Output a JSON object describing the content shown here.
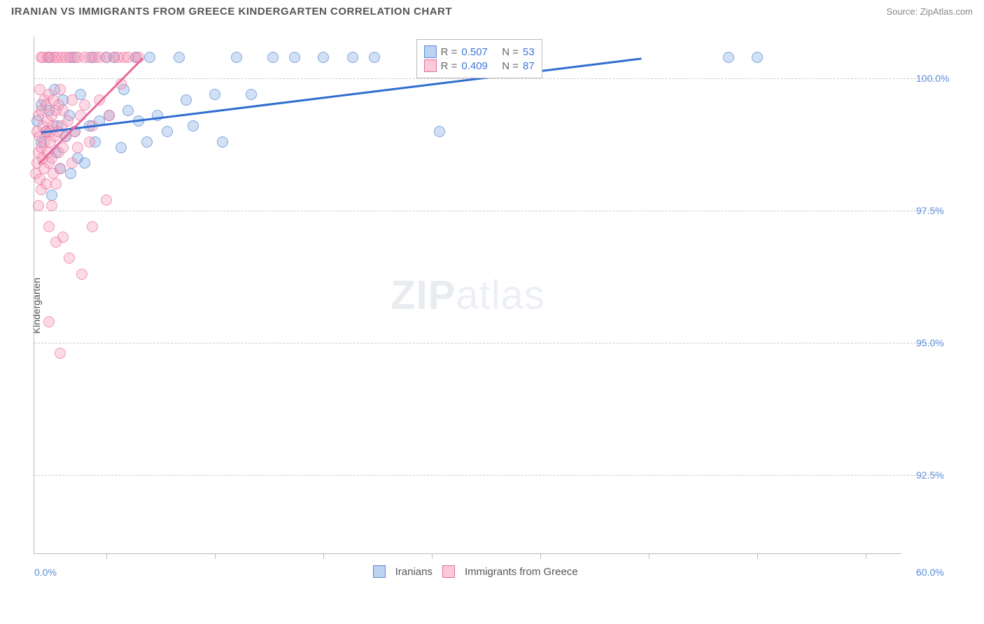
{
  "header": {
    "title": "IRANIAN VS IMMIGRANTS FROM GREECE KINDERGARTEN CORRELATION CHART",
    "source": "Source: ZipAtlas.com"
  },
  "chart": {
    "type": "scatter",
    "watermark": "ZIPatlas",
    "ylabel": "Kindergarten",
    "background_color": "#ffffff",
    "grid_color": "#cccccc",
    "axis_color": "#bbbbbb",
    "tick_color": "#5b8dd6",
    "ylabel_color": "#555555",
    "xlim": [
      0,
      60
    ],
    "ylim": [
      91.0,
      100.8
    ],
    "ytick_labels": [
      "92.5%",
      "95.0%",
      "97.5%",
      "100.0%"
    ],
    "ytick_values": [
      92.5,
      95.0,
      97.5,
      100.0
    ],
    "xtick_values": [
      5,
      12.5,
      20,
      27.5,
      35,
      42.5,
      50,
      57.5
    ],
    "xlim_labels": [
      "0.0%",
      "60.0%"
    ],
    "legend_box": {
      "rows": [
        {
          "swatch": "blue",
          "r_label": "R =",
          "r_value": "0.507",
          "n_label": "N =",
          "n_value": "53"
        },
        {
          "swatch": "pink",
          "r_label": "R =",
          "r_value": "0.409",
          "n_label": "N =",
          "n_value": "87"
        }
      ]
    },
    "series": [
      {
        "name": "Iranians",
        "color_fill": "rgba(120,165,225,0.35)",
        "color_stroke": "rgba(70,120,200,0.55)",
        "marker_radius": 8,
        "regression": {
          "x1": 0.5,
          "y1": 99.0,
          "x2": 42,
          "y2": 100.4,
          "color": "#2f6dd0",
          "width": 2.5
        },
        "points": [
          [
            0.2,
            99.2
          ],
          [
            0.5,
            98.8
          ],
          [
            0.5,
            99.5
          ],
          [
            0.8,
            99.0
          ],
          [
            1.0,
            99.4
          ],
          [
            1.0,
            100.4
          ],
          [
            1.2,
            97.8
          ],
          [
            1.4,
            99.8
          ],
          [
            1.5,
            98.6
          ],
          [
            1.6,
            99.1
          ],
          [
            1.8,
            98.3
          ],
          [
            2.0,
            99.6
          ],
          [
            2.2,
            98.9
          ],
          [
            2.4,
            99.3
          ],
          [
            2.5,
            98.2
          ],
          [
            2.6,
            100.4
          ],
          [
            2.8,
            99.0
          ],
          [
            3.0,
            98.5
          ],
          [
            3.2,
            99.7
          ],
          [
            3.5,
            98.4
          ],
          [
            3.8,
            99.1
          ],
          [
            4.0,
            100.4
          ],
          [
            4.2,
            98.8
          ],
          [
            4.5,
            99.2
          ],
          [
            5.0,
            100.4
          ],
          [
            5.2,
            99.3
          ],
          [
            5.5,
            100.4
          ],
          [
            6.0,
            98.7
          ],
          [
            6.2,
            99.8
          ],
          [
            6.5,
            99.4
          ],
          [
            7.0,
            100.4
          ],
          [
            7.2,
            99.2
          ],
          [
            7.8,
            98.8
          ],
          [
            8.0,
            100.4
          ],
          [
            8.5,
            99.3
          ],
          [
            9.2,
            99.0
          ],
          [
            10.0,
            100.4
          ],
          [
            10.5,
            99.6
          ],
          [
            11.0,
            99.1
          ],
          [
            12.5,
            99.7
          ],
          [
            13.0,
            98.8
          ],
          [
            14.0,
            100.4
          ],
          [
            15.0,
            99.7
          ],
          [
            16.5,
            100.4
          ],
          [
            18.0,
            100.4
          ],
          [
            20.0,
            100.4
          ],
          [
            22.0,
            100.4
          ],
          [
            23.5,
            100.4
          ],
          [
            28.0,
            99.0
          ],
          [
            32.0,
            100.4
          ],
          [
            34.0,
            100.4
          ],
          [
            48.0,
            100.4
          ],
          [
            50.0,
            100.4
          ]
        ]
      },
      {
        "name": "Immigrants from Greece",
        "color_fill": "rgba(245,150,180,0.35)",
        "color_stroke": "rgba(230,100,150,0.55)",
        "marker_radius": 8,
        "regression": {
          "x1": 0.3,
          "y1": 98.4,
          "x2": 7.5,
          "y2": 100.4,
          "color": "#e56a9c",
          "width": 2.5
        },
        "points": [
          [
            0.1,
            98.2
          ],
          [
            0.2,
            99.0
          ],
          [
            0.2,
            98.4
          ],
          [
            0.3,
            99.3
          ],
          [
            0.3,
            98.6
          ],
          [
            0.3,
            97.6
          ],
          [
            0.4,
            99.8
          ],
          [
            0.4,
            98.9
          ],
          [
            0.4,
            98.1
          ],
          [
            0.5,
            100.4
          ],
          [
            0.5,
            99.4
          ],
          [
            0.5,
            98.7
          ],
          [
            0.5,
            97.9
          ],
          [
            0.6,
            99.1
          ],
          [
            0.6,
            98.5
          ],
          [
            0.6,
            100.4
          ],
          [
            0.7,
            99.6
          ],
          [
            0.7,
            98.3
          ],
          [
            0.7,
            98.8
          ],
          [
            0.8,
            99.0
          ],
          [
            0.8,
            98.0
          ],
          [
            0.8,
            99.5
          ],
          [
            0.9,
            100.4
          ],
          [
            0.9,
            98.6
          ],
          [
            0.9,
            99.2
          ],
          [
            1.0,
            98.4
          ],
          [
            1.0,
            99.7
          ],
          [
            1.0,
            97.2
          ],
          [
            1.1,
            99.0
          ],
          [
            1.1,
            98.8
          ],
          [
            1.1,
            100.4
          ],
          [
            1.2,
            99.3
          ],
          [
            1.2,
            98.5
          ],
          [
            1.2,
            97.6
          ],
          [
            1.3,
            99.1
          ],
          [
            1.3,
            98.2
          ],
          [
            1.3,
            99.6
          ],
          [
            1.4,
            100.4
          ],
          [
            1.4,
            98.9
          ],
          [
            1.5,
            99.4
          ],
          [
            1.5,
            98.0
          ],
          [
            1.5,
            96.9
          ],
          [
            1.6,
            99.0
          ],
          [
            1.6,
            100.4
          ],
          [
            1.7,
            98.6
          ],
          [
            1.7,
            99.5
          ],
          [
            1.8,
            98.3
          ],
          [
            1.8,
            99.8
          ],
          [
            1.9,
            100.4
          ],
          [
            1.9,
            99.1
          ],
          [
            2.0,
            98.7
          ],
          [
            2.0,
            97.0
          ],
          [
            2.0,
            99.4
          ],
          [
            2.2,
            100.4
          ],
          [
            2.2,
            98.9
          ],
          [
            2.3,
            99.2
          ],
          [
            2.4,
            96.6
          ],
          [
            2.4,
            100.4
          ],
          [
            2.6,
            99.6
          ],
          [
            2.6,
            98.4
          ],
          [
            2.8,
            100.4
          ],
          [
            2.8,
            99.0
          ],
          [
            3.0,
            98.7
          ],
          [
            3.0,
            100.4
          ],
          [
            3.2,
            99.3
          ],
          [
            3.3,
            96.3
          ],
          [
            3.5,
            100.4
          ],
          [
            3.5,
            99.5
          ],
          [
            3.8,
            98.8
          ],
          [
            3.8,
            100.4
          ],
          [
            4.0,
            99.1
          ],
          [
            4.0,
            97.2
          ],
          [
            4.2,
            100.4
          ],
          [
            4.5,
            99.6
          ],
          [
            4.5,
            100.4
          ],
          [
            5.0,
            100.4
          ],
          [
            5.0,
            97.7
          ],
          [
            5.2,
            99.3
          ],
          [
            5.5,
            100.4
          ],
          [
            5.8,
            100.4
          ],
          [
            6.0,
            99.9
          ],
          [
            6.2,
            100.4
          ],
          [
            6.5,
            100.4
          ],
          [
            7.0,
            100.4
          ],
          [
            7.2,
            100.4
          ],
          [
            1.0,
            95.4
          ],
          [
            1.8,
            94.8
          ]
        ]
      }
    ],
    "bottom_legend": [
      {
        "swatch": "blue",
        "label": "Iranians"
      },
      {
        "swatch": "pink",
        "label": "Immigrants from Greece"
      }
    ]
  }
}
